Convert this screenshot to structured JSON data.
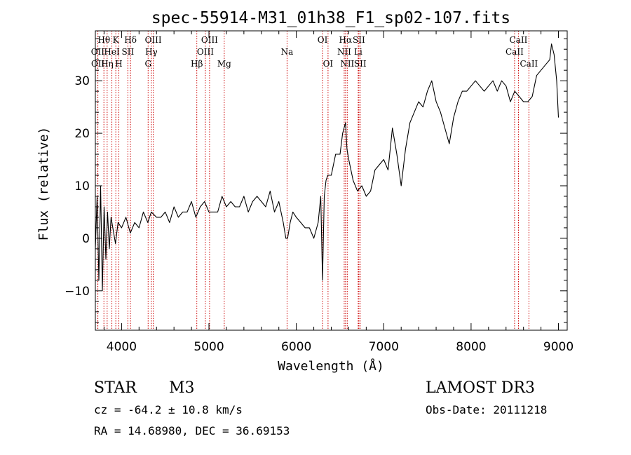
{
  "chart_data": {
    "type": "line",
    "title": "spec-55914-M31_01h38_F1_sp02-107.fits",
    "xlabel": "Wavelength (Å)",
    "ylabel": "Flux (relative)",
    "xlim": [
      3700,
      9100
    ],
    "ylim": [
      -17.5,
      39.5
    ],
    "xticks": [
      4000,
      5000,
      6000,
      7000,
      8000,
      9000
    ],
    "yticks": [
      -10,
      0,
      10,
      20,
      30
    ],
    "grid": false,
    "legend": "none",
    "series": [
      {
        "x": [
          3700,
          3720,
          3740,
          3760,
          3780,
          3800,
          3820,
          3840,
          3860,
          3880,
          3900,
          3930,
          3960,
          4000,
          4050,
          4100,
          4150,
          4200,
          4250,
          4300,
          4340,
          4400,
          4450,
          4500,
          4550,
          4600,
          4650,
          4700,
          4750,
          4800,
          4850,
          4900,
          4950,
          5000,
          5050,
          5100,
          5150,
          5200,
          5250,
          5300,
          5350,
          5400,
          5450,
          5500,
          5550,
          5600,
          5650,
          5700,
          5750,
          5800,
          5850,
          5880,
          5900,
          5930,
          5960,
          6000,
          6050,
          6100,
          6150,
          6200,
          6250,
          6280,
          6300,
          6320,
          6340,
          6360,
          6400,
          6450,
          6500,
          6530,
          6563,
          6580,
          6600,
          6650,
          6700,
          6750,
          6800,
          6850,
          6900,
          6950,
          7000,
          7050,
          7100,
          7150,
          7200,
          7250,
          7300,
          7350,
          7400,
          7450,
          7500,
          7550,
          7600,
          7650,
          7700,
          7750,
          7800,
          7850,
          7900,
          7950,
          8000,
          8050,
          8100,
          8150,
          8200,
          8250,
          8300,
          8350,
          8400,
          8450,
          8500,
          8550,
          8600,
          8650,
          8700,
          8750,
          8800,
          8850,
          8900,
          8920,
          8950,
          8980,
          9000
        ],
        "y": [
          -2,
          8,
          -8,
          10,
          -10,
          6,
          -4,
          5,
          -2,
          4,
          2,
          -1,
          3,
          2,
          4,
          1,
          3,
          2,
          5,
          3,
          5,
          4,
          4,
          5,
          3,
          6,
          4,
          5,
          5,
          7,
          4,
          6,
          7,
          5,
          5,
          5,
          8,
          6,
          7,
          6,
          6,
          8,
          5,
          7,
          8,
          7,
          6,
          9,
          5,
          7,
          3,
          0,
          0,
          3,
          5,
          4,
          3,
          2,
          2,
          0,
          3,
          8,
          -8,
          8,
          11,
          12,
          12,
          16,
          16,
          20,
          22,
          17,
          15,
          11,
          9,
          10,
          8,
          9,
          13,
          14,
          15,
          13,
          21,
          16,
          10,
          17,
          22,
          24,
          26,
          25,
          28,
          30,
          26,
          24,
          21,
          18,
          23,
          26,
          28,
          28,
          29,
          30,
          29,
          28,
          29,
          30,
          28,
          30,
          29,
          26,
          28,
          27,
          26,
          26,
          27,
          31,
          32,
          33,
          34,
          37,
          35,
          30,
          23
        ]
      }
    ],
    "lines": [
      {
        "label": "Hθ",
        "wl": 3798,
        "row": 1
      },
      {
        "label": "OII",
        "wl": 3727,
        "row": 2
      },
      {
        "label": "OII",
        "wl": 3729,
        "row": 3
      },
      {
        "label": "Hη",
        "wl": 3835,
        "row": 3
      },
      {
        "label": "HeI",
        "wl": 3889,
        "row": 2
      },
      {
        "label": "K",
        "wl": 3934,
        "row": 1
      },
      {
        "label": "H",
        "wl": 3969,
        "row": 3
      },
      {
        "label": "SII",
        "wl": 4072,
        "row": 2
      },
      {
        "label": "Hδ",
        "wl": 4102,
        "row": 1
      },
      {
        "label": "G",
        "wl": 4304,
        "row": 3
      },
      {
        "label": "Hγ",
        "wl": 4341,
        "row": 2
      },
      {
        "label": "OIII",
        "wl": 4363,
        "row": 1
      },
      {
        "label": "Hβ",
        "wl": 4861,
        "row": 3
      },
      {
        "label": "OIII",
        "wl": 4959,
        "row": 2
      },
      {
        "label": "OIII",
        "wl": 5007,
        "row": 1
      },
      {
        "label": "Mg",
        "wl": 5175,
        "row": 3
      },
      {
        "label": "Na",
        "wl": 5894,
        "row": 2
      },
      {
        "label": "OI",
        "wl": 6300,
        "row": 1
      },
      {
        "label": "OI",
        "wl": 6363,
        "row": 3
      },
      {
        "label": "NII",
        "wl": 6548,
        "row": 2
      },
      {
        "label": "Hα",
        "wl": 6563,
        "row": 1
      },
      {
        "label": "NII",
        "wl": 6583,
        "row": 3
      },
      {
        "label": "Li",
        "wl": 6708,
        "row": 2
      },
      {
        "label": "SII",
        "wl": 6716,
        "row": 1
      },
      {
        "label": "SII",
        "wl": 6731,
        "row": 3
      },
      {
        "label": "CaII",
        "wl": 8498,
        "row": 2
      },
      {
        "label": "CaII",
        "wl": 8542,
        "row": 1
      },
      {
        "label": "CaII",
        "wl": 8662,
        "row": 3
      }
    ]
  },
  "info": {
    "object_class": "STAR",
    "subclass": "M3",
    "survey": "LAMOST DR3",
    "redshift": "cz = -64.2 ± 10.8 km/s",
    "obs_date": "Obs-Date: 20111218",
    "coords": "RA =  14.68980, DEC =  36.69153"
  },
  "colors": {
    "line_marker": "#cc0000",
    "spectrum": "#000000",
    "background": "#ffffff"
  }
}
